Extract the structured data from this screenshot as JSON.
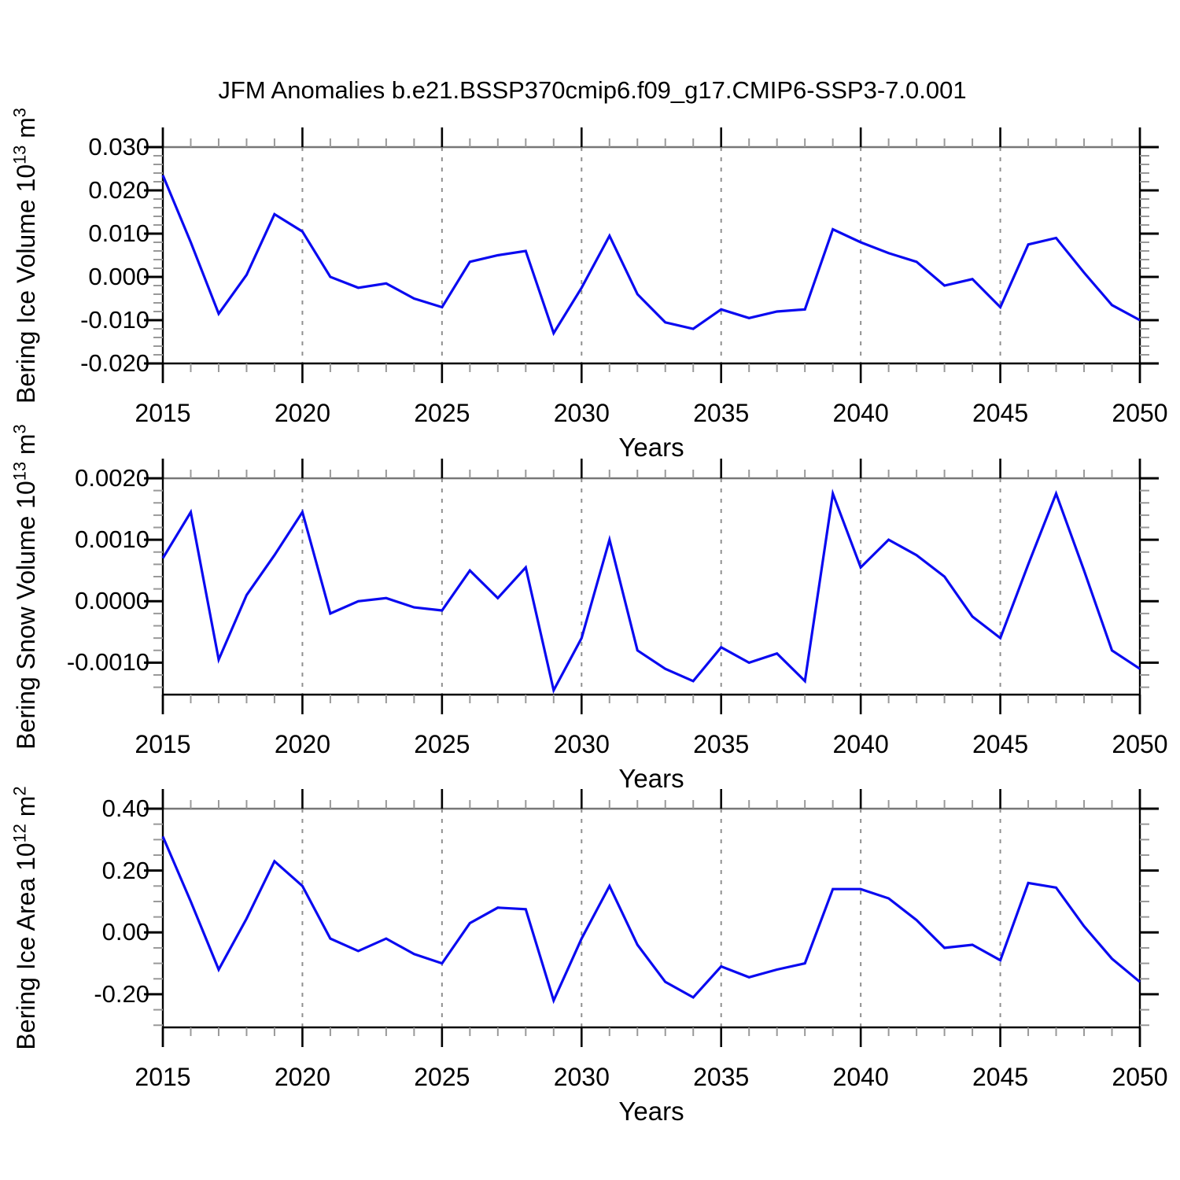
{
  "title": "JFM Anomalies b.e21.BSSP370cmip6.f09_g17.CMIP6-SSP3-7.0.001",
  "colors": {
    "line": "#0A0AF0",
    "axis": "#000000",
    "top_border": "#777777",
    "minor_tick": "#999999",
    "gridline": "#909090",
    "text": "#000000"
  },
  "chart_data": [
    {
      "type": "line",
      "name": "bering-ice-volume",
      "ylabel": "Bering Ice Volume 10^13 m^3",
      "ylabel_segments": [
        {
          "text": "Bering Ice Volume 10",
          "sup": false
        },
        {
          "text": "13",
          "sup": true
        },
        {
          "text": " m",
          "sup": false
        },
        {
          "text": "3",
          "sup": true
        }
      ],
      "xlabel": "Years",
      "xlim": [
        2015,
        2050
      ],
      "ylim": [
        -0.02,
        0.03
      ],
      "x_major_ticks": [
        2015,
        2020,
        2025,
        2030,
        2035,
        2040,
        2045,
        2050
      ],
      "x_tick_labels": [
        "2015",
        "2020",
        "2025",
        "2030",
        "2035",
        "2040",
        "2045",
        "2050"
      ],
      "grid_x": [
        2020,
        2025,
        2030,
        2035,
        2040,
        2045
      ],
      "y_major_ticks": [
        0.03,
        0.02,
        0.01,
        0.0,
        -0.01,
        -0.02
      ],
      "y_tick_labels": [
        "0.030",
        "0.020",
        "0.010",
        "0.000",
        "-0.010",
        "-0.020"
      ],
      "y_minor_step": 0.002,
      "x": [
        2015,
        2016,
        2017,
        2018,
        2019,
        2020,
        2021,
        2022,
        2023,
        2024,
        2025,
        2026,
        2027,
        2028,
        2029,
        2030,
        2031,
        2032,
        2033,
        2034,
        2035,
        2036,
        2037,
        2038,
        2039,
        2040,
        2041,
        2042,
        2043,
        2044,
        2045,
        2046,
        2047,
        2048,
        2049,
        2050
      ],
      "values": [
        0.0235,
        0.008,
        -0.0085,
        0.0005,
        0.0145,
        0.0105,
        0.0,
        -0.0025,
        -0.0015,
        -0.005,
        -0.007,
        0.0035,
        0.005,
        0.006,
        -0.013,
        -0.0025,
        0.0095,
        -0.004,
        -0.0105,
        -0.012,
        -0.0075,
        -0.0095,
        -0.008,
        -0.0075,
        0.011,
        0.008,
        0.0055,
        0.0035,
        -0.002,
        -0.0005,
        -0.007,
        0.0075,
        0.009,
        0.001,
        -0.0065,
        -0.01
      ]
    },
    {
      "type": "line",
      "name": "bering-snow-volume",
      "ylabel": "Bering Snow Volume 10^13 m^3",
      "ylabel_segments": [
        {
          "text": "Bering Snow Volume 10",
          "sup": false
        },
        {
          "text": "13",
          "sup": true
        },
        {
          "text": " m",
          "sup": false
        },
        {
          "text": "3",
          "sup": true
        }
      ],
      "xlabel": "Years",
      "xlim": [
        2015,
        2050
      ],
      "ylim": [
        -0.00152,
        0.002
      ],
      "x_major_ticks": [
        2015,
        2020,
        2025,
        2030,
        2035,
        2040,
        2045,
        2050
      ],
      "x_tick_labels": [
        "2015",
        "2020",
        "2025",
        "2030",
        "2035",
        "2040",
        "2045",
        "2050"
      ],
      "grid_x": [
        2020,
        2025,
        2030,
        2035,
        2040,
        2045
      ],
      "y_major_ticks": [
        0.002,
        0.001,
        0.0,
        -0.001
      ],
      "y_tick_labels": [
        "0.0020",
        "0.0010",
        "0.0000",
        "-0.0010"
      ],
      "y_minor_step": 0.0002,
      "x": [
        2015,
        2016,
        2017,
        2018,
        2019,
        2020,
        2021,
        2022,
        2023,
        2024,
        2025,
        2026,
        2027,
        2028,
        2029,
        2030,
        2031,
        2032,
        2033,
        2034,
        2035,
        2036,
        2037,
        2038,
        2039,
        2040,
        2041,
        2042,
        2043,
        2044,
        2045,
        2046,
        2047,
        2048,
        2049,
        2050
      ],
      "values": [
        0.0007,
        0.00145,
        -0.00095,
        0.0001,
        0.00075,
        0.00145,
        -0.0002,
        0.0,
        5e-05,
        -0.0001,
        -0.00015,
        0.0005,
        5e-05,
        0.00055,
        -0.00145,
        -0.0006,
        0.001,
        -0.0008,
        -0.0011,
        -0.0013,
        -0.00075,
        -0.001,
        -0.00085,
        -0.0013,
        0.00175,
        0.00055,
        0.001,
        0.00075,
        0.0004,
        -0.00025,
        -0.0006,
        0.0006,
        0.00175,
        0.0005,
        -0.0008,
        -0.0011
      ]
    },
    {
      "type": "line",
      "name": "bering-ice-area",
      "ylabel": "Bering Ice Area 10^12 m^2",
      "ylabel_segments": [
        {
          "text": "Bering Ice Area 10",
          "sup": false
        },
        {
          "text": "12",
          "sup": true
        },
        {
          "text": " m",
          "sup": false
        },
        {
          "text": "2",
          "sup": true
        }
      ],
      "xlabel": "Years",
      "xlim": [
        2015,
        2050
      ],
      "ylim": [
        -0.307,
        0.4
      ],
      "x_major_ticks": [
        2015,
        2020,
        2025,
        2030,
        2035,
        2040,
        2045,
        2050
      ],
      "x_tick_labels": [
        "2015",
        "2020",
        "2025",
        "2030",
        "2035",
        "2040",
        "2045",
        "2050"
      ],
      "grid_x": [
        2020,
        2025,
        2030,
        2035,
        2040,
        2045
      ],
      "y_major_ticks": [
        0.4,
        0.2,
        0.0,
        -0.2
      ],
      "y_tick_labels": [
        "0.40",
        "0.20",
        "0.00",
        "-0.20"
      ],
      "y_minor_step": 0.05,
      "x": [
        2015,
        2016,
        2017,
        2018,
        2019,
        2020,
        2021,
        2022,
        2023,
        2024,
        2025,
        2026,
        2027,
        2028,
        2029,
        2030,
        2031,
        2032,
        2033,
        2034,
        2035,
        2036,
        2037,
        2038,
        2039,
        2040,
        2041,
        2042,
        2043,
        2044,
        2045,
        2046,
        2047,
        2048,
        2049,
        2050
      ],
      "values": [
        0.31,
        0.1,
        -0.12,
        0.045,
        0.23,
        0.15,
        -0.02,
        -0.06,
        -0.02,
        -0.07,
        -0.1,
        0.03,
        0.08,
        0.075,
        -0.22,
        -0.02,
        0.15,
        -0.04,
        -0.16,
        -0.21,
        -0.11,
        -0.145,
        -0.12,
        -0.1,
        0.14,
        0.14,
        0.11,
        0.04,
        -0.05,
        -0.04,
        -0.09,
        0.16,
        0.145,
        0.02,
        -0.085,
        -0.16
      ]
    }
  ]
}
